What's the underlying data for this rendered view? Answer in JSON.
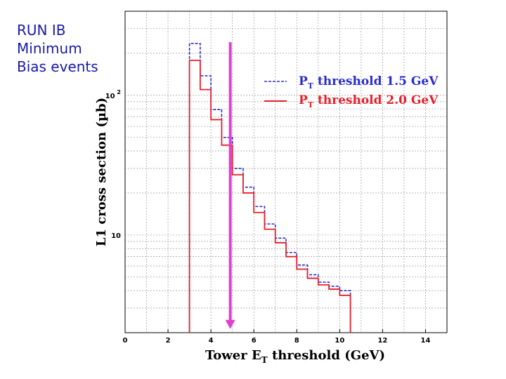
{
  "slide_note": {
    "lines": [
      "RUN IB",
      "Minimum",
      "Bias events"
    ]
  },
  "colors": {
    "note_text": "#1a1aa8",
    "series_15": "#2b2bd0",
    "series_20": "#e8202a",
    "marker": "#e040d0",
    "grid": "#888888"
  },
  "chart_data": {
    "type": "line",
    "step": true,
    "title": "",
    "xlabel": "Tower E_T threshold (GeV)",
    "xlabel_main": "Tower E",
    "xlabel_sub": "T",
    "xlabel_tail": " threshold (GeV)",
    "ylabel": "L1 cross section (µb)",
    "xlim": [
      0,
      15
    ],
    "ylim": [
      2,
      400
    ],
    "yscale": "log",
    "x_ticks": [
      0,
      2,
      4,
      6,
      8,
      10,
      12,
      14
    ],
    "x_tick_labels": [
      "0",
      "2",
      "4",
      "6",
      "8",
      "10",
      "12",
      "14"
    ],
    "y_tick_labels": [
      {
        "value": 100,
        "base": "10",
        "exp": "2"
      },
      {
        "value": 10,
        "base": "10",
        "exp": ""
      }
    ],
    "grid": true,
    "bin_edges": [
      3.0,
      3.5,
      4.0,
      4.5,
      5.0,
      5.5,
      6.0,
      6.5,
      7.0,
      7.5,
      8.0,
      8.5,
      9.0,
      9.5,
      10.0,
      10.5
    ],
    "series": [
      {
        "name": "P_T threshold 1.5 GeV",
        "label_main": "P",
        "label_sub": "T",
        "label_tail": " threshold 1.5 GeV",
        "style": "dashed",
        "color": "#2b2bd0",
        "values": [
          235,
          138,
          79,
          50,
          30,
          22,
          16,
          12,
          9.5,
          7.5,
          6.1,
          5.2,
          4.6,
          4.3,
          4.0
        ]
      },
      {
        "name": "P_T threshold 2.0 GeV",
        "label_main": "P",
        "label_sub": "T",
        "label_tail": " threshold 2.0 GeV",
        "style": "solid",
        "color": "#e8202a",
        "values": [
          178,
          110,
          67,
          44,
          27,
          20,
          14.5,
          11,
          8.8,
          7,
          5.7,
          4.9,
          4.4,
          4.1,
          3.7
        ]
      }
    ],
    "annotations": [
      {
        "type": "arrow",
        "x": 4.9,
        "y_from": 240,
        "y_to": 2.1,
        "color": "#e040d0"
      }
    ]
  }
}
